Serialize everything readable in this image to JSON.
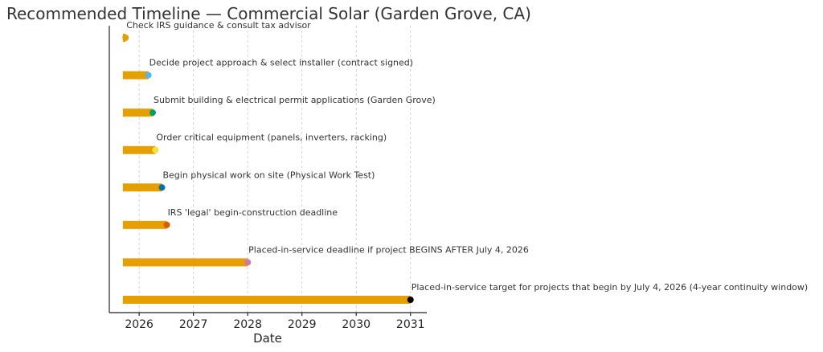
{
  "chart_data": {
    "type": "bar",
    "orientation": "horizontal",
    "title": "Recommended Timeline — Commercial Solar (Garden Grove, CA)",
    "xlabel": "Date",
    "ylabel": "",
    "xlim": [
      2025.45,
      2031.3
    ],
    "xticks": [
      2026,
      2027,
      2028,
      2029,
      2030,
      2031
    ],
    "x_tick_labels": [
      "2026",
      "2027",
      "2028",
      "2029",
      "2030",
      "2031"
    ],
    "grid": "x",
    "start": 2025.7,
    "bar_color": "#E69F00",
    "tasks": [
      {
        "label": "Check IRS guidance & consult tax advisor",
        "end": 2025.75,
        "marker_color": "#E69F00"
      },
      {
        "label": "Decide project approach & select installer (contract signed)",
        "end": 2026.17,
        "marker_color": "#56B4E9"
      },
      {
        "label": "Submit building & electrical permit applications (Garden Grove)",
        "end": 2026.25,
        "marker_color": "#009E73"
      },
      {
        "label": "Order critical equipment (panels, inverters, racking)",
        "end": 2026.3,
        "marker_color": "#F0E442"
      },
      {
        "label": "Begin physical work on site (Physical Work Test)",
        "end": 2026.42,
        "marker_color": "#0072B2"
      },
      {
        "label": "IRS 'legal' begin-construction deadline",
        "end": 2026.51,
        "marker_color": "#D55E00"
      },
      {
        "label": "Placed-in-service deadline if project BEGINS AFTER July 4, 2026",
        "end": 2028.0,
        "marker_color": "#CC79A7"
      },
      {
        "label": "Placed-in-service target for projects that begin by July 4, 2026 (4-year continuity window)",
        "end": 2031.0,
        "marker_color": "#000000"
      }
    ]
  }
}
